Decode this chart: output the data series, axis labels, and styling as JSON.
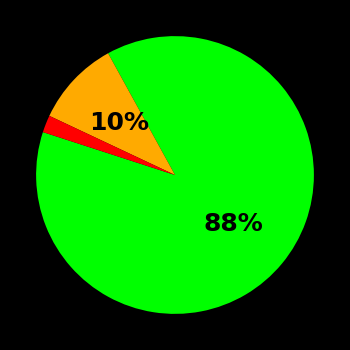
{
  "slices": [
    88,
    10,
    2
  ],
  "colors": [
    "#00ff00",
    "#ffaa00",
    "#ff0000"
  ],
  "labels": [
    "88%",
    "10%",
    ""
  ],
  "background_color": "#000000",
  "text_color": "#000000",
  "font_size": 18,
  "font_weight": "bold",
  "startangle": 162,
  "label_radii": [
    0.55,
    0.55,
    0.55
  ]
}
